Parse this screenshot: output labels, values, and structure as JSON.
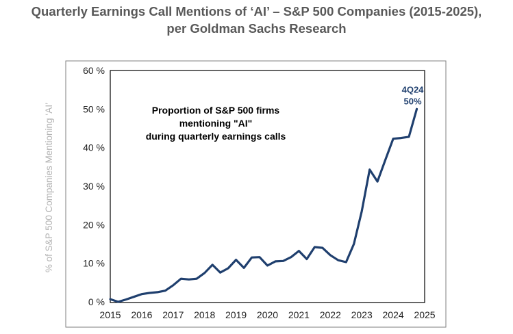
{
  "header": {
    "title_line1": "Quarterly Earnings Call Mentions of ‘AI’ – S&P 500 Companies (2015-2025),",
    "title_line2": "per Goldman Sachs Research"
  },
  "chart_data": {
    "type": "line",
    "title": "Quarterly Earnings Call Mentions of ‘AI’ – S&P 500 Companies (2015-2025), per Goldman Sachs Research",
    "ylabel": "% of S&P 500 Companies Mentioning ‘AI’",
    "xlabel": "",
    "xlim": [
      2015,
      2025
    ],
    "ylim": [
      0,
      60
    ],
    "x_ticks": [
      "2015",
      "2016",
      "2017",
      "2018",
      "2019",
      "2020",
      "2021",
      "2022",
      "2023",
      "2024",
      "2025"
    ],
    "y_ticks": [
      "0 %",
      "10 %",
      "20 %",
      "30 %",
      "40 %",
      "50 %",
      "60 %"
    ],
    "annotation": {
      "lines": [
        "Proportion of S&P 500 firms",
        "mentioning \"AI\"",
        "during quarterly earnings calls"
      ]
    },
    "peak_label": {
      "line1": "4Q24",
      "line2": "50%"
    },
    "grid": false,
    "line_color": "#1f3f6e",
    "series": [
      {
        "x": [
          2015.0,
          2015.25,
          2015.5,
          2015.75,
          2016.0,
          2016.25,
          2016.5,
          2016.75,
          2017.0,
          2017.25,
          2017.5,
          2017.75,
          2018.0,
          2018.25,
          2018.5,
          2018.75,
          2019.0,
          2019.25,
          2019.5,
          2019.75,
          2020.0,
          2020.25,
          2020.5,
          2020.75,
          2021.0,
          2021.25,
          2021.5,
          2021.75,
          2022.0,
          2022.25,
          2022.5,
          2022.75,
          2023.0,
          2023.25,
          2023.5,
          2023.75,
          2024.0,
          2024.25,
          2024.5,
          2024.75
        ],
        "values": [
          0.7,
          0.0,
          0.6,
          1.3,
          2.0,
          2.3,
          2.5,
          2.9,
          4.3,
          6.0,
          5.8,
          6.0,
          7.5,
          9.6,
          7.6,
          8.7,
          10.9,
          8.8,
          11.5,
          11.6,
          9.4,
          10.5,
          10.6,
          11.6,
          13.2,
          11.1,
          14.2,
          14.0,
          12.1,
          10.8,
          10.3,
          15.0,
          23.5,
          34.3,
          31.2,
          36.8,
          42.3,
          42.5,
          42.8,
          50.0
        ]
      }
    ]
  }
}
